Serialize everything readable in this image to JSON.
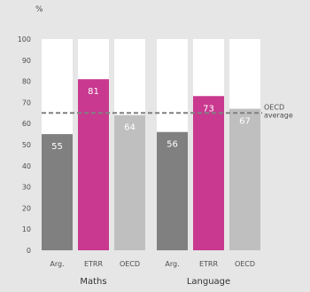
{
  "chart_data": {
    "type": "bar",
    "unit_label": "%",
    "ylim": [
      0,
      100
    ],
    "y_ticks": [
      0,
      10,
      20,
      30,
      40,
      50,
      60,
      70,
      80,
      90,
      100
    ],
    "groups": [
      {
        "name": "Maths",
        "bars": [
          {
            "label": "Arg.",
            "value": 55,
            "value_label": "55",
            "color": "#808080"
          },
          {
            "label": "ETRR",
            "value": 81,
            "value_label": "81",
            "color": "#c8398f"
          },
          {
            "label": "OECD",
            "value": 64,
            "value_label": "64",
            "color": "#bfbfbf"
          }
        ]
      },
      {
        "name": "Language",
        "bars": [
          {
            "label": "Arg.",
            "value": 56,
            "value_label": "56",
            "color": "#808080"
          },
          {
            "label": "ETRR",
            "value": 73,
            "value_label": "73",
            "color": "#c8398f"
          },
          {
            "label": "OECD",
            "value": 67,
            "value_label": "67",
            "color": "#bfbfbf"
          }
        ]
      }
    ],
    "reference_line": {
      "value": 65,
      "label_lines": [
        "OECD",
        "average"
      ],
      "color": "#808080"
    },
    "background_bar_color": "#ffffff",
    "grid": false
  }
}
